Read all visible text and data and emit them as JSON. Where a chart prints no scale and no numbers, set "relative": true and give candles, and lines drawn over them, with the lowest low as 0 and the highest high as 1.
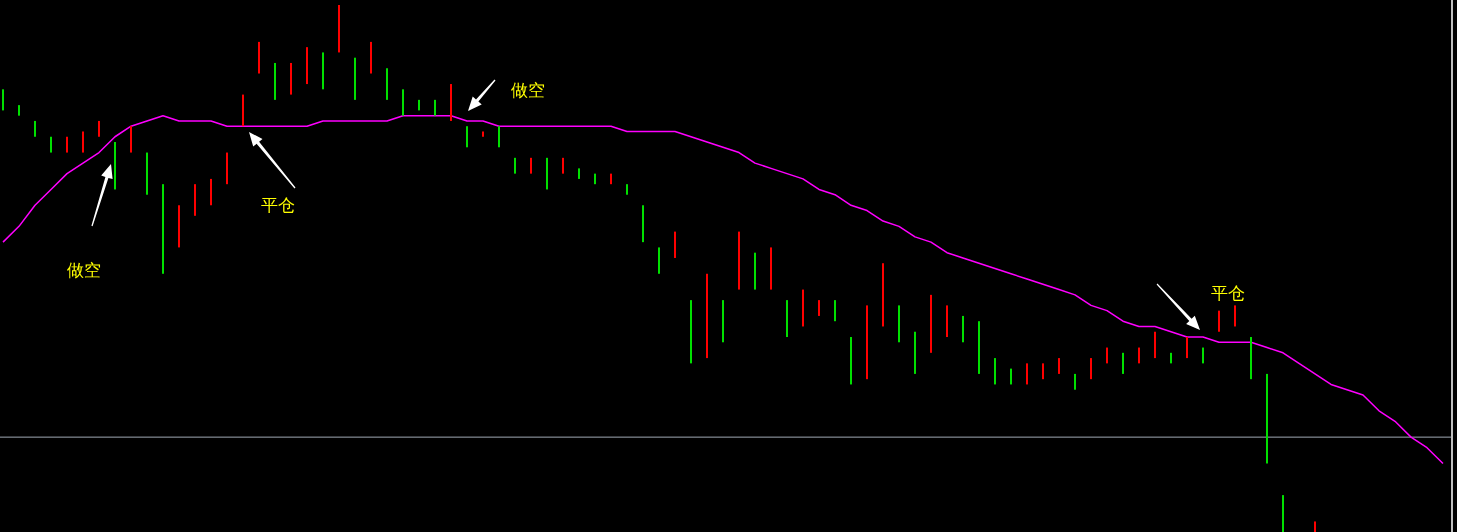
{
  "chart_data": {
    "type": "candlestick",
    "relative": true,
    "categories": [
      null,
      null,
      null,
      null,
      null,
      null,
      null,
      null,
      null,
      null,
      null,
      null,
      null,
      null,
      null,
      null,
      null,
      null,
      null,
      null,
      null,
      null,
      null,
      null,
      null,
      null,
      null,
      null,
      null,
      null,
      null,
      null,
      null,
      null,
      null,
      null,
      null,
      null,
      null,
      null,
      null,
      null,
      null,
      null,
      null,
      null,
      null,
      null,
      null,
      null,
      null,
      null,
      null,
      null,
      null,
      null,
      null,
      null,
      null,
      null,
      null,
      null,
      null,
      null,
      null,
      null,
      null,
      null,
      null,
      null,
      null,
      null,
      null,
      null,
      null,
      null,
      null,
      null,
      null,
      null,
      null,
      null,
      null,
      null,
      null,
      null,
      null,
      null,
      null,
      null,
      null
    ],
    "ohlc": [
      [
        0.84,
        0.84,
        0.8,
        0.8
      ],
      [
        0.81,
        0.81,
        0.79,
        0.79
      ],
      [
        0.78,
        0.78,
        0.75,
        0.75
      ],
      [
        0.75,
        0.75,
        0.72,
        0.72
      ],
      [
        0.72,
        0.75,
        0.72,
        0.75
      ],
      [
        0.72,
        0.76,
        0.72,
        0.76
      ],
      [
        0.75,
        0.78,
        0.75,
        0.78
      ],
      [
        0.74,
        0.74,
        0.65,
        0.65
      ],
      [
        0.72,
        0.77,
        0.72,
        0.77
      ],
      [
        0.72,
        0.72,
        0.64,
        0.64
      ],
      [
        0.66,
        0.66,
        0.49,
        0.49
      ],
      [
        0.54,
        0.62,
        0.54,
        0.62
      ],
      [
        0.6,
        0.66,
        0.6,
        0.66
      ],
      [
        0.62,
        0.67,
        0.62,
        0.67
      ],
      [
        0.66,
        0.72,
        0.66,
        0.72
      ],
      [
        0.77,
        0.83,
        0.77,
        0.83
      ],
      [
        0.87,
        0.93,
        0.87,
        0.93
      ],
      [
        0.89,
        0.89,
        0.82,
        0.82
      ],
      [
        0.83,
        0.89,
        0.83,
        0.89
      ],
      [
        0.85,
        0.92,
        0.85,
        0.92
      ],
      [
        0.91,
        0.91,
        0.84,
        0.84
      ],
      [
        0.91,
        1.0,
        0.91,
        1.0
      ],
      [
        0.9,
        0.9,
        0.82,
        0.82
      ],
      [
        0.87,
        0.93,
        0.87,
        0.93
      ],
      [
        0.88,
        0.88,
        0.82,
        0.82
      ],
      [
        0.84,
        0.84,
        0.79,
        0.79
      ],
      [
        0.82,
        0.82,
        0.8,
        0.8
      ],
      [
        0.82,
        0.82,
        0.79,
        0.79
      ],
      [
        0.78,
        0.85,
        0.78,
        0.85
      ],
      [
        0.77,
        0.77,
        0.73,
        0.73
      ],
      [
        0.75,
        0.76,
        0.75,
        0.76
      ],
      [
        0.77,
        0.77,
        0.73,
        0.73
      ],
      [
        0.71,
        0.71,
        0.68,
        0.68
      ],
      [
        0.68,
        0.71,
        0.68,
        0.71
      ],
      [
        0.71,
        0.71,
        0.65,
        0.65
      ],
      [
        0.68,
        0.71,
        0.68,
        0.71
      ],
      [
        0.69,
        0.69,
        0.67,
        0.67
      ],
      [
        0.68,
        0.68,
        0.66,
        0.66
      ],
      [
        0.66,
        0.68,
        0.66,
        0.68
      ],
      [
        0.66,
        0.66,
        0.64,
        0.64
      ],
      [
        0.62,
        0.62,
        0.55,
        0.55
      ],
      [
        0.54,
        0.54,
        0.49,
        0.49
      ],
      [
        0.52,
        0.57,
        0.52,
        0.57
      ],
      [
        0.44,
        0.44,
        0.32,
        0.32
      ],
      [
        0.33,
        0.49,
        0.33,
        0.49
      ],
      [
        0.44,
        0.44,
        0.36,
        0.36
      ],
      [
        0.46,
        0.57,
        0.46,
        0.57
      ],
      [
        0.53,
        0.53,
        0.46,
        0.46
      ],
      [
        0.46,
        0.54,
        0.46,
        0.54
      ],
      [
        0.44,
        0.44,
        0.37,
        0.37
      ],
      [
        0.39,
        0.46,
        0.39,
        0.46
      ],
      [
        0.41,
        0.44,
        0.41,
        0.44
      ],
      [
        0.44,
        0.44,
        0.4,
        0.4
      ],
      [
        0.37,
        0.37,
        0.28,
        0.28
      ],
      [
        0.29,
        0.43,
        0.29,
        0.43
      ],
      [
        0.39,
        0.51,
        0.39,
        0.51
      ],
      [
        0.43,
        0.43,
        0.36,
        0.36
      ],
      [
        0.38,
        0.38,
        0.3,
        0.3
      ],
      [
        0.34,
        0.45,
        0.34,
        0.45
      ],
      [
        0.37,
        0.43,
        0.37,
        0.43
      ],
      [
        0.41,
        0.41,
        0.36,
        0.36
      ],
      [
        0.4,
        0.4,
        0.3,
        0.3
      ],
      [
        0.33,
        0.33,
        0.28,
        0.28
      ],
      [
        0.31,
        0.31,
        0.28,
        0.28
      ],
      [
        0.28,
        0.32,
        0.28,
        0.32
      ],
      [
        0.29,
        0.32,
        0.29,
        0.32
      ],
      [
        0.3,
        0.33,
        0.3,
        0.33
      ],
      [
        0.3,
        0.3,
        0.27,
        0.27
      ],
      [
        0.29,
        0.33,
        0.29,
        0.33
      ],
      [
        0.32,
        0.35,
        0.32,
        0.35
      ],
      [
        0.34,
        0.34,
        0.3,
        0.3
      ],
      [
        0.32,
        0.35,
        0.32,
        0.35
      ],
      [
        0.33,
        0.38,
        0.33,
        0.38
      ],
      [
        0.34,
        0.34,
        0.32,
        0.32
      ],
      [
        0.33,
        0.37,
        0.33,
        0.37
      ],
      [
        0.35,
        0.35,
        0.32,
        0.32
      ],
      [
        0.38,
        0.42,
        0.38,
        0.42
      ],
      [
        0.39,
        0.43,
        0.39,
        0.43
      ],
      [
        0.37,
        0.37,
        0.29,
        0.29
      ],
      [
        0.3,
        0.3,
        0.13,
        0.13
      ],
      [
        0.07,
        0.07,
        0,
        0
      ],
      null,
      [
        0,
        0.02,
        0,
        0.02
      ],
      null,
      null,
      null,
      null,
      null,
      null,
      null,
      null
    ],
    "series": [
      {
        "type": "line",
        "color": "#ff00ff",
        "values": [
          0.55,
          0.58,
          0.62,
          0.65,
          0.68,
          0.7,
          0.72,
          0.75,
          0.77,
          0.78,
          0.79,
          0.78,
          0.78,
          0.78,
          0.77,
          0.77,
          0.77,
          0.77,
          0.77,
          0.77,
          0.78,
          0.78,
          0.78,
          0.78,
          0.78,
          0.79,
          0.79,
          0.79,
          0.79,
          0.78,
          0.78,
          0.77,
          0.77,
          0.77,
          0.77,
          0.77,
          0.77,
          0.77,
          0.77,
          0.76,
          0.76,
          0.76,
          0.76,
          0.75,
          0.74,
          0.73,
          0.72,
          0.7,
          0.69,
          0.68,
          0.67,
          0.65,
          0.64,
          0.62,
          0.61,
          0.59,
          0.58,
          0.56,
          0.55,
          0.53,
          0.52,
          0.51,
          0.5,
          0.49,
          0.48,
          0.47,
          0.46,
          0.45,
          0.43,
          0.42,
          0.4,
          0.39,
          0.39,
          0.38,
          0.37,
          0.37,
          0.36,
          0.36,
          0.36,
          0.35,
          0.34,
          0.32,
          0.3,
          0.28,
          0.27,
          0.26,
          0.23,
          0.21,
          0.18,
          0.16,
          0.13
        ]
      }
    ],
    "ref_lines": [
      {
        "axis": "y",
        "value": 0.18,
        "color": "#a0aab4"
      }
    ],
    "annotations": [
      "做空",
      "平仓",
      "做空",
      "平仓"
    ]
  }
}
